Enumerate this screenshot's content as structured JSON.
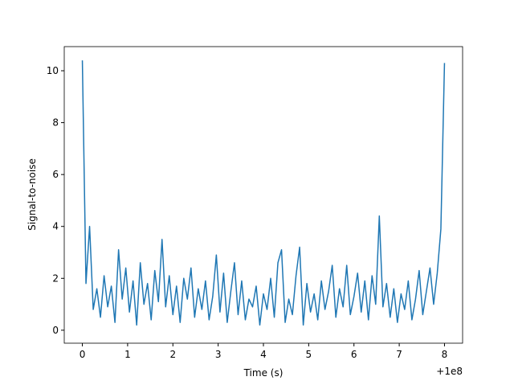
{
  "chart_data": {
    "type": "line",
    "xlabel": "Time (s)",
    "ylabel": "Signal-to-noise",
    "x_offset_label": "+1e8",
    "xlim": [
      -0.4,
      8.4
    ],
    "ylim": [
      -0.5,
      10.93
    ],
    "xticks": [
      0,
      1,
      2,
      3,
      4,
      5,
      6,
      7,
      8
    ],
    "yticks": [
      0,
      2,
      4,
      6,
      8,
      10
    ],
    "grid": false,
    "x": [
      0,
      0.08,
      0.16,
      0.24,
      0.32,
      0.4,
      0.48,
      0.56,
      0.64,
      0.72,
      0.8,
      0.88,
      0.96,
      1.04,
      1.12,
      1.2,
      1.28,
      1.36,
      1.44,
      1.52,
      1.6,
      1.68,
      1.76,
      1.84,
      1.92,
      2,
      2.08,
      2.16,
      2.24,
      2.32,
      2.4,
      2.48,
      2.56,
      2.64,
      2.72,
      2.8,
      2.88,
      2.96,
      3.04,
      3.12,
      3.2,
      3.28,
      3.36,
      3.44,
      3.52,
      3.6,
      3.68,
      3.76,
      3.84,
      3.92,
      4,
      4.08,
      4.16,
      4.24,
      4.32,
      4.4,
      4.48,
      4.56,
      4.64,
      4.72,
      4.8,
      4.88,
      4.96,
      5.04,
      5.12,
      5.2,
      5.28,
      5.36,
      5.44,
      5.52,
      5.6,
      5.68,
      5.76,
      5.84,
      5.92,
      6,
      6.08,
      6.16,
      6.24,
      6.32,
      6.4,
      6.48,
      6.56,
      6.64,
      6.72,
      6.8,
      6.88,
      6.96,
      7.04,
      7.12,
      7.2,
      7.28,
      7.36,
      7.44,
      7.52,
      7.6,
      7.68,
      7.76,
      7.84,
      7.92,
      8
    ],
    "series": [
      {
        "color": "#1f77b4",
        "values": [
          10.4,
          1.8,
          4.0,
          0.8,
          1.6,
          0.5,
          2.1,
          0.9,
          1.7,
          0.3,
          3.1,
          1.2,
          2.4,
          0.7,
          1.9,
          0.2,
          2.6,
          1.0,
          1.8,
          0.4,
          2.3,
          1.1,
          3.5,
          0.9,
          2.1,
          0.6,
          1.7,
          0.3,
          2.0,
          1.2,
          2.4,
          0.5,
          1.6,
          0.8,
          1.9,
          0.4,
          1.3,
          2.9,
          0.7,
          2.2,
          0.3,
          1.5,
          2.6,
          0.6,
          1.9,
          0.4,
          1.2,
          0.9,
          1.7,
          0.2,
          1.4,
          0.8,
          2.0,
          0.5,
          2.6,
          3.1,
          0.3,
          1.2,
          0.6,
          2.1,
          3.2,
          0.2,
          1.8,
          0.7,
          1.4,
          0.4,
          1.9,
          0.8,
          1.5,
          2.5,
          0.5,
          1.6,
          0.9,
          2.5,
          0.6,
          1.3,
          2.2,
          0.7,
          1.9,
          0.4,
          2.1,
          1.0,
          4.4,
          0.9,
          1.8,
          0.5,
          1.6,
          0.3,
          1.4,
          0.8,
          1.9,
          0.4,
          1.2,
          2.3,
          0.6,
          1.5,
          2.4,
          1.0,
          2.2,
          3.9,
          10.3
        ]
      }
    ]
  }
}
